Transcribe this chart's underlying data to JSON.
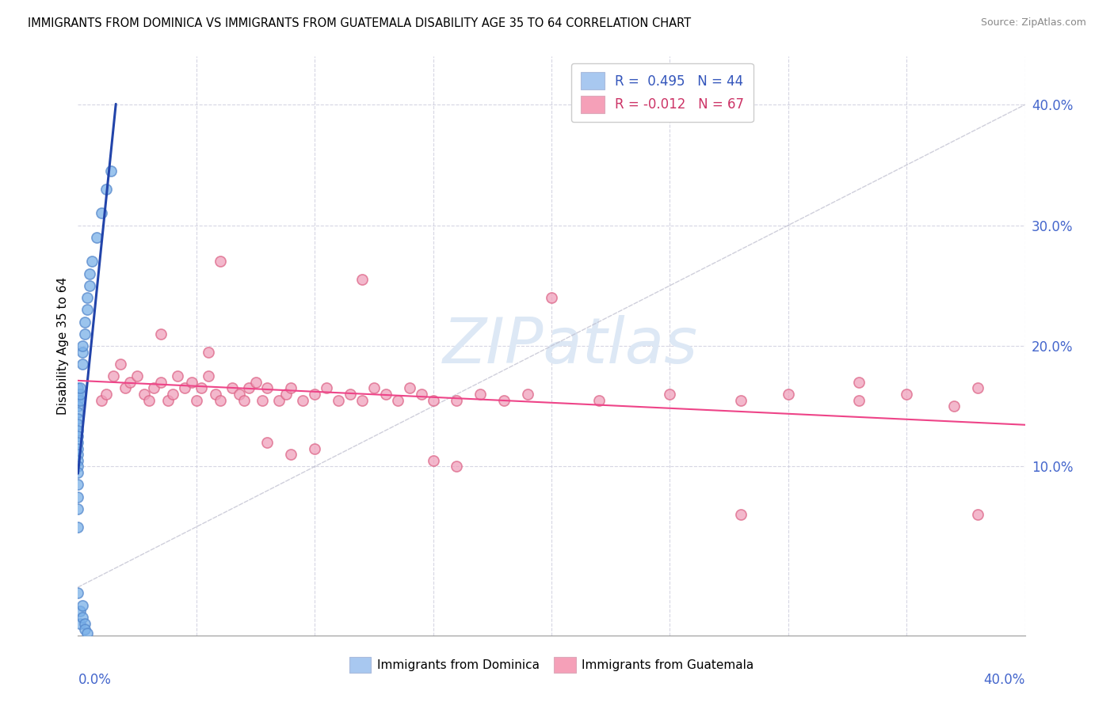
{
  "title": "IMMIGRANTS FROM DOMINICA VS IMMIGRANTS FROM GUATEMALA DISABILITY AGE 35 TO 64 CORRELATION CHART",
  "source": "Source: ZipAtlas.com",
  "ylabel": "Disability Age 35 to 64",
  "x_lim": [
    0.0,
    0.4
  ],
  "y_lim": [
    -0.04,
    0.44
  ],
  "y_ticks": [
    0.0,
    0.1,
    0.2,
    0.3,
    0.4
  ],
  "y_tick_labels": [
    "",
    "10.0%",
    "20.0%",
    "30.0%",
    "40.0%"
  ],
  "legend_entries": [
    {
      "label": "R =  0.495   N = 44",
      "facecolor": "#a8c8f0",
      "textcolor": "#3355bb"
    },
    {
      "label": "R = -0.012   N = 67",
      "facecolor": "#f5a0b8",
      "textcolor": "#cc3366"
    }
  ],
  "dominica_color": "#7ab0e8",
  "dominica_edge": "#5588cc",
  "guatemala_color": "#f0a0bc",
  "guatemala_edge": "#dd6688",
  "trend_dominica_color": "#2244aa",
  "trend_guatemala_color": "#ee4488",
  "ref_line_color": "#bbbbcc",
  "grid_color": "#ccccdd",
  "watermark": "ZIPatlas",
  "watermark_color": "#dde8f5",
  "dominica_points": [
    [
      0.0,
      0.155
    ],
    [
      0.0,
      0.16
    ],
    [
      0.0,
      0.165
    ],
    [
      0.0,
      0.15
    ],
    [
      0.0,
      0.145
    ],
    [
      0.0,
      0.14
    ],
    [
      0.0,
      0.135
    ],
    [
      0.0,
      0.13
    ],
    [
      0.0,
      0.125
    ],
    [
      0.0,
      0.12
    ],
    [
      0.0,
      0.115
    ],
    [
      0.0,
      0.11
    ],
    [
      0.0,
      0.105
    ],
    [
      0.0,
      0.1
    ],
    [
      0.0,
      0.095
    ],
    [
      0.0,
      0.085
    ],
    [
      0.0,
      0.075
    ],
    [
      0.0,
      0.065
    ],
    [
      0.0,
      0.05
    ],
    [
      0.0,
      -0.005
    ],
    [
      0.001,
      0.155
    ],
    [
      0.001,
      0.16
    ],
    [
      0.001,
      0.165
    ],
    [
      0.002,
      0.185
    ],
    [
      0.002,
      0.195
    ],
    [
      0.002,
      0.2
    ],
    [
      0.003,
      0.21
    ],
    [
      0.003,
      0.22
    ],
    [
      0.004,
      0.24
    ],
    [
      0.004,
      0.23
    ],
    [
      0.005,
      0.26
    ],
    [
      0.005,
      0.25
    ],
    [
      0.006,
      0.27
    ],
    [
      0.008,
      0.29
    ],
    [
      0.01,
      0.31
    ],
    [
      0.012,
      0.33
    ],
    [
      0.014,
      0.345
    ],
    [
      0.001,
      -0.02
    ],
    [
      0.001,
      -0.03
    ],
    [
      0.002,
      -0.015
    ],
    [
      0.002,
      -0.025
    ],
    [
      0.003,
      -0.03
    ],
    [
      0.003,
      -0.035
    ],
    [
      0.004,
      -0.038
    ]
  ],
  "guatemala_points": [
    [
      0.01,
      0.155
    ],
    [
      0.012,
      0.16
    ],
    [
      0.015,
      0.175
    ],
    [
      0.018,
      0.185
    ],
    [
      0.02,
      0.165
    ],
    [
      0.022,
      0.17
    ],
    [
      0.025,
      0.175
    ],
    [
      0.028,
      0.16
    ],
    [
      0.03,
      0.155
    ],
    [
      0.032,
      0.165
    ],
    [
      0.035,
      0.17
    ],
    [
      0.038,
      0.155
    ],
    [
      0.04,
      0.16
    ],
    [
      0.042,
      0.175
    ],
    [
      0.045,
      0.165
    ],
    [
      0.048,
      0.17
    ],
    [
      0.05,
      0.155
    ],
    [
      0.052,
      0.165
    ],
    [
      0.055,
      0.175
    ],
    [
      0.058,
      0.16
    ],
    [
      0.06,
      0.155
    ],
    [
      0.065,
      0.165
    ],
    [
      0.068,
      0.16
    ],
    [
      0.07,
      0.155
    ],
    [
      0.072,
      0.165
    ],
    [
      0.075,
      0.17
    ],
    [
      0.078,
      0.155
    ],
    [
      0.08,
      0.165
    ],
    [
      0.085,
      0.155
    ],
    [
      0.088,
      0.16
    ],
    [
      0.09,
      0.165
    ],
    [
      0.095,
      0.155
    ],
    [
      0.1,
      0.16
    ],
    [
      0.105,
      0.165
    ],
    [
      0.11,
      0.155
    ],
    [
      0.115,
      0.16
    ],
    [
      0.12,
      0.155
    ],
    [
      0.125,
      0.165
    ],
    [
      0.13,
      0.16
    ],
    [
      0.135,
      0.155
    ],
    [
      0.14,
      0.165
    ],
    [
      0.145,
      0.16
    ],
    [
      0.15,
      0.155
    ],
    [
      0.16,
      0.155
    ],
    [
      0.17,
      0.16
    ],
    [
      0.18,
      0.155
    ],
    [
      0.19,
      0.16
    ],
    [
      0.06,
      0.27
    ],
    [
      0.12,
      0.255
    ],
    [
      0.2,
      0.24
    ],
    [
      0.035,
      0.21
    ],
    [
      0.055,
      0.195
    ],
    [
      0.08,
      0.12
    ],
    [
      0.09,
      0.11
    ],
    [
      0.1,
      0.115
    ],
    [
      0.15,
      0.105
    ],
    [
      0.16,
      0.1
    ],
    [
      0.22,
      0.155
    ],
    [
      0.25,
      0.16
    ],
    [
      0.28,
      0.155
    ],
    [
      0.3,
      0.16
    ],
    [
      0.33,
      0.155
    ],
    [
      0.35,
      0.16
    ],
    [
      0.38,
      0.165
    ],
    [
      0.33,
      0.17
    ],
    [
      0.37,
      0.15
    ],
    [
      0.28,
      0.06
    ],
    [
      0.38,
      0.06
    ]
  ]
}
